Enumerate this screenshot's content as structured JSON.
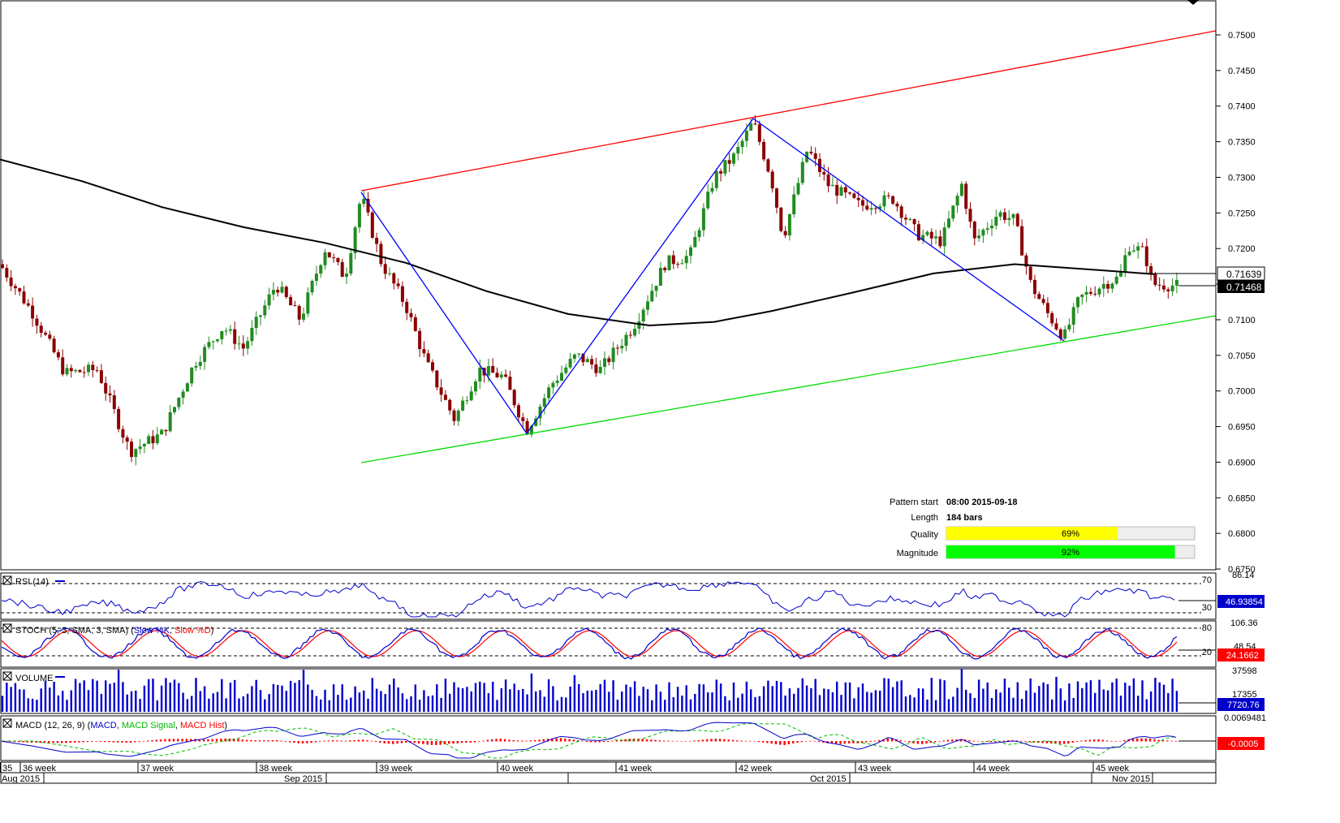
{
  "main": {
    "price_ticks": [
      "0.7500",
      "0.7450",
      "0.7400",
      "0.7350",
      "0.7300",
      "0.7250",
      "0.7200",
      "0.7150",
      "0.7100",
      "0.7050",
      "0.7000",
      "0.6950",
      "0.6900",
      "0.6850",
      "0.6800",
      "0.6750"
    ],
    "current_labels": [
      "0.71639",
      "0.71468"
    ]
  },
  "pattern_info": {
    "start_label": "Pattern start",
    "start_value": "08:00 2015-09-18",
    "length_label": "Length",
    "length_value": "184 bars",
    "quality_label": "Quality",
    "quality_value": "69%",
    "quality_fraction": 0.69,
    "magnitude_label": "Magnitude",
    "magnitude_value": "92%",
    "magnitude_fraction": 0.92
  },
  "rsi": {
    "title": "RSI (14)",
    "top_right": "86.14",
    "level_high": "70",
    "level_low": "30",
    "value": "46.93854"
  },
  "stoch": {
    "title": "STOCH (5, 3, SMA, 3, SMA)",
    "legend_k": "Slow %K",
    "legend_d": "Slow %D",
    "top_right": "106.36",
    "level_high": "80",
    "level_low": "20",
    "low_right": "48.54",
    "value": "24.1662"
  },
  "volume": {
    "title": "VOLUME",
    "top_right": "37598",
    "mid_right": "17355",
    "value": "7720.76"
  },
  "macd": {
    "title": "MACD (12, 26, 9)",
    "legend_macd": "MACD",
    "legend_signal": "MACD Signal",
    "legend_hist": "MACD Hist",
    "top_right": "0.0069481",
    "value": "-0.0005"
  },
  "xaxis": {
    "weeks": [
      "35",
      "36 week",
      "37 week",
      "38 week",
      "39 week",
      "40 week",
      "41 week",
      "42 week",
      "43 week",
      "44 week",
      "45 week"
    ],
    "months": [
      "Aug 2015",
      "Sep 2015",
      "Oct 2015",
      "Nov 2015"
    ]
  },
  "colors": {
    "bull": "#228B22",
    "bear": "#8B0000",
    "ma": "#000000",
    "upper": "#FF0000",
    "lower": "#00DD00",
    "zigzag": "#0000FF",
    "quality": "#FFFF00",
    "magnitude": "#00FF00"
  },
  "chart_data": {
    "type": "candlestick",
    "ylim": [
      0.675,
      0.752
    ],
    "channel_upper": {
      "start": [
        "2015-09-18",
        0.728
      ],
      "end": [
        "2015-11-06",
        0.7505
      ]
    },
    "channel_lower": {
      "start": [
        "2015-09-18",
        0.6898
      ],
      "end": [
        "2015-11-06",
        0.7106
      ]
    },
    "zigzag": [
      0.728,
      0.694,
      0.7383,
      0.707
    ],
    "moving_average_last": 0.71639,
    "last_close": 0.71468
  }
}
